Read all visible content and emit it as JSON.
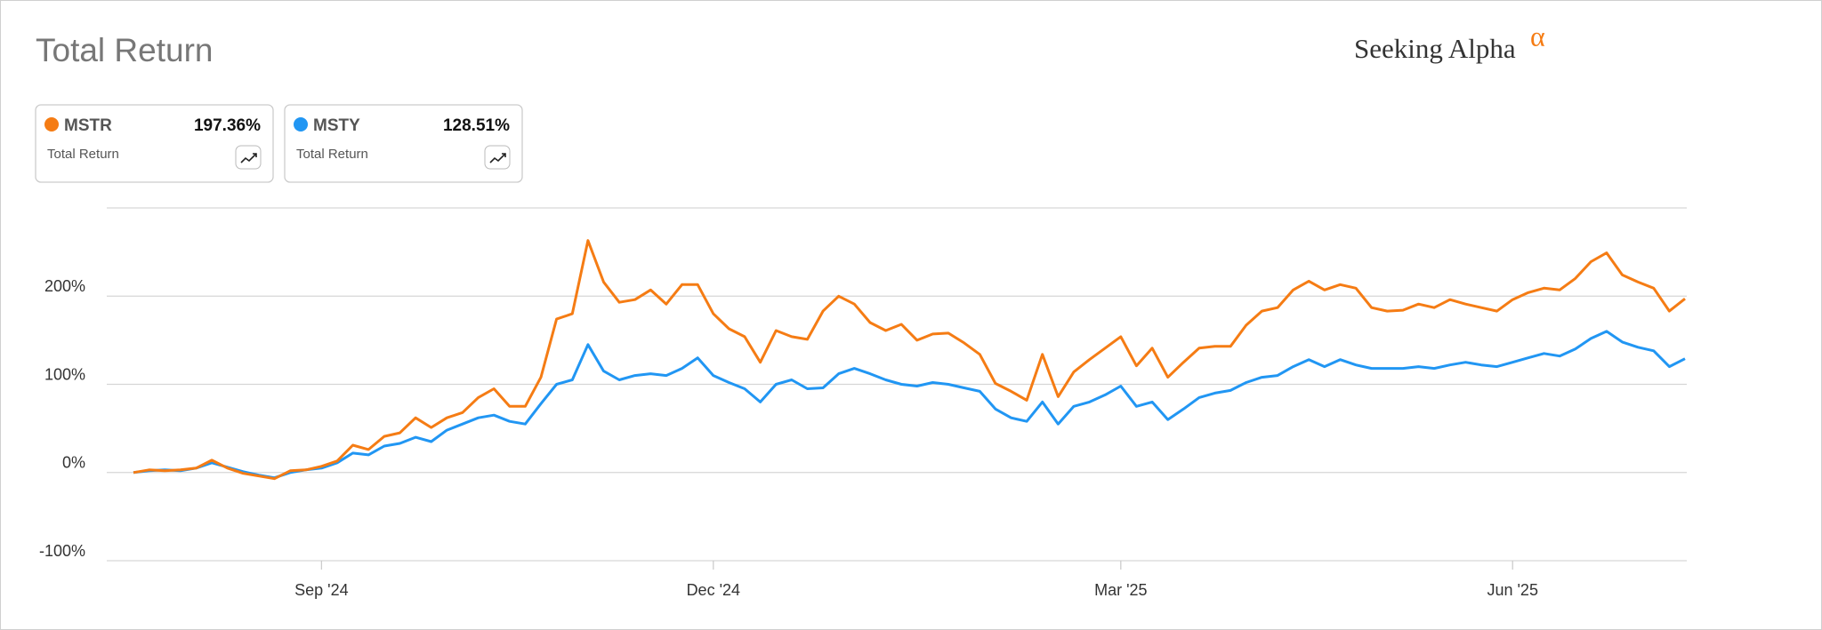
{
  "brand": {
    "name": "Seeking Alpha",
    "mark": "α"
  },
  "chart_data": {
    "type": "line",
    "title": "Total Return",
    "categories": [
      null,
      null,
      null,
      null,
      null,
      null,
      null,
      null,
      null,
      null,
      null,
      null,
      "Sep '24",
      null,
      null,
      null,
      null,
      null,
      null,
      null,
      null,
      null,
      null,
      null,
      null,
      null,
      null,
      null,
      null,
      null,
      null,
      null,
      null,
      null,
      null,
      null,
      null,
      "Dec '24",
      null,
      null,
      null,
      null,
      null,
      null,
      null,
      null,
      null,
      null,
      null,
      null,
      null,
      null,
      null,
      null,
      null,
      null,
      null,
      null,
      null,
      null,
      null,
      null,
      null,
      "Mar '25",
      null,
      null,
      null,
      null,
      null,
      null,
      null,
      null,
      null,
      null,
      null,
      null,
      null,
      null,
      null,
      null,
      null,
      null,
      null,
      null,
      null,
      null,
      null,
      null,
      "Jun '25",
      null,
      null,
      null,
      null,
      null,
      null,
      null,
      null,
      null,
      null,
      null
    ],
    "series": [
      {
        "name": "MSTR",
        "color": "#f57c14",
        "total_label": "197.36%",
        "caption": "Total Return",
        "values": [
          0,
          3,
          2,
          3,
          5,
          14,
          5,
          -1,
          -4,
          -7,
          2,
          3,
          7,
          13,
          31,
          26,
          41,
          45,
          62,
          51,
          62,
          68,
          85,
          95,
          75,
          75,
          108,
          174,
          180,
          263,
          216,
          193,
          196,
          207,
          191,
          213,
          213,
          180,
          163,
          154,
          125,
          161,
          154,
          151,
          183,
          200,
          191,
          170,
          161,
          168,
          150,
          157,
          158,
          147,
          134,
          101,
          92,
          82,
          134,
          86,
          114,
          128,
          141,
          154,
          121,
          141,
          108,
          125,
          141,
          143,
          143,
          167,
          183,
          187,
          207,
          217,
          207,
          213,
          209,
          187,
          183,
          184,
          191,
          187,
          196,
          191,
          187,
          183,
          196,
          204,
          209,
          207,
          220,
          239,
          249,
          224,
          216,
          209,
          183,
          197
        ]
      },
      {
        "name": "MSTY",
        "color": "#2196f3",
        "total_label": "128.51%",
        "caption": "Total Return",
        "values": [
          0,
          2,
          3,
          2,
          5,
          11,
          6,
          1,
          -3,
          -6,
          0,
          3,
          5,
          11,
          22,
          20,
          30,
          33,
          40,
          35,
          48,
          55,
          62,
          65,
          58,
          55,
          78,
          100,
          105,
          145,
          115,
          105,
          110,
          112,
          110,
          118,
          130,
          110,
          102,
          95,
          80,
          100,
          105,
          95,
          96,
          112,
          118,
          112,
          105,
          100,
          98,
          102,
          100,
          96,
          92,
          72,
          62,
          58,
          80,
          55,
          75,
          80,
          88,
          98,
          75,
          80,
          60,
          72,
          85,
          90,
          93,
          102,
          108,
          110,
          120,
          128,
          120,
          128,
          122,
          118,
          118,
          118,
          120,
          118,
          122,
          125,
          122,
          120,
          125,
          130,
          135,
          132,
          140,
          152,
          160,
          148,
          142,
          138,
          120,
          129
        ]
      }
    ],
    "ylim": [
      -100,
      300
    ],
    "yticks": [
      {
        "value": -100,
        "label": "-100%"
      },
      {
        "value": 0,
        "label": "0%"
      },
      {
        "value": 100,
        "label": "100%"
      },
      {
        "value": 200,
        "label": "200%"
      }
    ],
    "grid": true
  }
}
